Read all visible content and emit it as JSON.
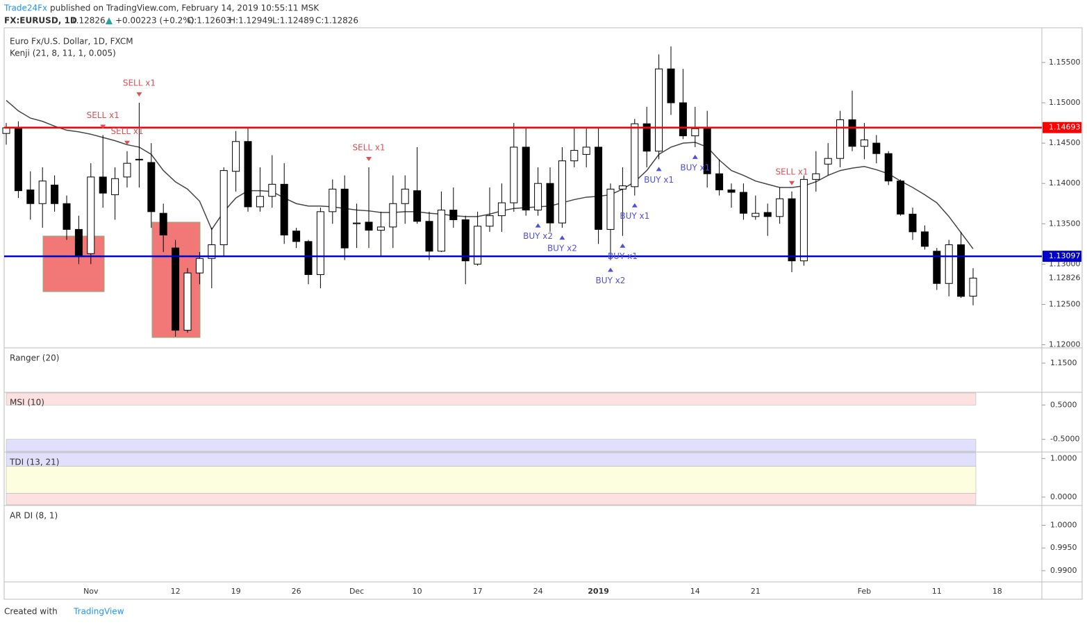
{
  "header": {
    "author": "Trade24Fx",
    "published": "published on TradingView.com, February 14, 2019 10:55:11 MSK",
    "symbol": "FX:EURUSD, 1D",
    "last": "1.12826",
    "change": "+0.00223 (+0.2%)",
    "open": "O:1.12603",
    "high": "H:1.12949",
    "low": "L:1.12489",
    "close": "C:1.12826"
  },
  "footer": {
    "created": "Created with",
    "brand": "TradingView"
  },
  "chart_data": {
    "type": "candlestick",
    "title": "Euro Fx/U.S. Dollar, 1D, FXCM",
    "indicator": "Kenji (21, 8, 11, 1, 0.005)",
    "categories": [
      null,
      null,
      null,
      null,
      null,
      null,
      null,
      "Nov",
      null,
      null,
      null,
      null,
      null,
      null,
      "12",
      null,
      null,
      null,
      null,
      "19",
      null,
      null,
      null,
      null,
      "26",
      null,
      null,
      null,
      null,
      "Dec",
      null,
      null,
      null,
      null,
      "10",
      null,
      null,
      null,
      null,
      "17",
      null,
      null,
      null,
      null,
      "24",
      null,
      null,
      null,
      null,
      "2019",
      null,
      null,
      null,
      null,
      null,
      null,
      null,
      "14",
      null,
      null,
      null,
      null,
      "21",
      null,
      null,
      null,
      null,
      null,
      null,
      null,
      null,
      "Feb",
      null,
      null,
      null,
      null,
      null,
      "11",
      null,
      null,
      null,
      null,
      "18"
    ],
    "open": [
      1.1462,
      1.1468,
      1.1392,
      1.1375,
      1.1398,
      1.1375,
      1.1343,
      1.1313,
      1.1408,
      1.1386,
      1.1408,
      1.143,
      1.1426,
      1.1363,
      1.132,
      1.1218,
      1.1289,
      1.1307,
      1.1324,
      1.1415,
      1.1452,
      1.1371,
      1.1384,
      1.1399,
      1.1341,
      1.1328,
      1.1287,
      1.1365,
      1.1393,
      1.135,
      1.1352,
      1.1342,
      1.1346,
      1.1375,
      1.1391,
      1.1353,
      1.1316,
      1.1367,
      1.1355,
      1.13,
      1.1347,
      1.136,
      1.1376,
      1.1445,
      1.1367,
      1.14,
      1.1351,
      1.1428,
      1.1436,
      1.1445,
      1.1343,
      1.1393,
      1.1396,
      1.1474,
      1.144,
      1.1542,
      1.15,
      1.1459,
      1.1468,
      1.1412,
      1.1392,
      1.1389,
      1.1359,
      1.1364,
      1.1359,
      1.1381,
      1.1304,
      1.1405,
      1.1424,
      1.1431,
      1.1479,
      1.1446,
      1.145,
      1.1437,
      1.1403,
      1.1362,
      1.134,
      1.1316,
      1.1276,
      1.1324,
      1.12603,
      null,
      null
    ],
    "high": [
      1.1475,
      1.1477,
      1.1415,
      1.142,
      1.141,
      1.1385,
      1.136,
      1.1425,
      1.146,
      1.142,
      1.144,
      1.15,
      1.145,
      1.1375,
      1.133,
      1.1295,
      1.1315,
      1.1345,
      1.142,
      1.1465,
      1.147,
      1.142,
      1.1435,
      1.1425,
      1.1345,
      1.133,
      1.137,
      1.1405,
      1.141,
      1.1375,
      1.142,
      1.1365,
      1.141,
      1.141,
      1.1445,
      1.1365,
      1.139,
      1.1395,
      1.136,
      1.1365,
      1.1395,
      1.14,
      1.1475,
      1.147,
      1.142,
      1.142,
      1.1445,
      1.147,
      1.147,
      1.147,
      1.14,
      1.142,
      1.148,
      1.1495,
      1.156,
      1.157,
      1.1542,
      1.1495,
      1.149,
      1.143,
      1.14,
      1.14,
      1.1385,
      1.1375,
      1.1395,
      1.139,
      1.141,
      1.144,
      1.145,
      1.149,
      1.1515,
      1.1475,
      1.146,
      1.144,
      1.1405,
      1.137,
      1.1348,
      1.132,
      1.133,
      1.134,
      1.12949,
      null,
      null
    ],
    "low": [
      1.1448,
      1.1382,
      1.1355,
      1.1345,
      1.1365,
      1.133,
      1.13,
      1.13,
      1.137,
      1.1355,
      1.1395,
      1.1395,
      1.1345,
      1.1315,
      1.121,
      1.1215,
      1.1275,
      1.127,
      1.131,
      1.139,
      1.1365,
      1.1365,
      1.137,
      1.1325,
      1.132,
      1.1275,
      1.127,
      1.135,
      1.1305,
      1.132,
      1.132,
      1.131,
      1.132,
      1.135,
      1.135,
      1.1305,
      1.1315,
      1.1345,
      1.1275,
      1.1298,
      1.134,
      1.134,
      1.1365,
      1.136,
      1.136,
      1.134,
      1.1345,
      1.142,
      1.142,
      1.1325,
      1.1305,
      1.1335,
      1.1385,
      1.142,
      1.143,
      1.1485,
      1.1455,
      1.1445,
      1.1395,
      1.1385,
      1.137,
      1.1355,
      1.1355,
      1.1335,
      1.135,
      1.129,
      1.1298,
      1.139,
      1.141,
      1.142,
      1.144,
      1.143,
      1.1425,
      1.1398,
      1.136,
      1.133,
      1.1318,
      1.1268,
      1.126,
      1.1258,
      1.12489,
      null,
      null
    ],
    "close": [
      1.1469,
      1.1391,
      1.1375,
      1.1403,
      1.1375,
      1.1343,
      1.1311,
      1.1408,
      1.1388,
      1.1406,
      1.1425,
      1.143,
      1.1365,
      1.1336,
      1.1218,
      1.1289,
      1.1307,
      1.1324,
      1.1416,
      1.1452,
      1.1371,
      1.1384,
      1.1399,
      1.1336,
      1.1328,
      1.1287,
      1.1365,
      1.1393,
      1.132,
      1.1351,
      1.1342,
      1.1346,
      1.1375,
      1.1393,
      1.1353,
      1.1316,
      1.1367,
      1.1355,
      1.1304,
      1.1347,
      1.136,
      1.1376,
      1.1445,
      1.1367,
      1.14,
      1.1351,
      1.1428,
      1.1441,
      1.1445,
      1.1343,
      1.1393,
      1.1397,
      1.1474,
      1.144,
      1.1542,
      1.15,
      1.1459,
      1.1468,
      1.1412,
      1.1392,
      1.1389,
      1.1363,
      1.1363,
      1.1359,
      1.1381,
      1.1304,
      1.1405,
      1.1412,
      1.1431,
      1.1479,
      1.1446,
      1.1454,
      1.1437,
      1.1403,
      1.1362,
      1.134,
      1.1322,
      1.1276,
      1.1324,
      1.126,
      1.12826,
      null,
      null
    ],
    "kenji": {
      "color": "#444444",
      "values": [
        1.1503,
        1.149,
        1.1481,
        1.1477,
        1.1471,
        1.1466,
        1.1464,
        1.1461,
        1.1457,
        1.1453,
        1.1448,
        1.1445,
        1.1436,
        1.1416,
        1.1402,
        1.1393,
        1.1378,
        1.1343,
        1.1365,
        1.1382,
        1.1391,
        1.1391,
        1.139,
        1.1382,
        1.1375,
        1.1372,
        1.1372,
        1.1371,
        1.1369,
        1.1367,
        1.1366,
        1.1364,
        1.1364,
        1.1365,
        1.1365,
        1.1363,
        1.1362,
        1.136,
        1.1359,
        1.1359,
        1.1362,
        1.1366,
        1.1369,
        1.137,
        1.1371,
        1.1372,
        1.1376,
        1.138,
        1.1383,
        1.1384,
        1.1386,
        1.1393,
        1.1402,
        1.1416,
        1.1436,
        1.1445,
        1.145,
        1.1451,
        1.1445,
        1.1429,
        1.1416,
        1.141,
        1.1403,
        1.1399,
        1.1395,
        1.1395,
        1.1397,
        1.1402,
        1.141,
        1.1416,
        1.1419,
        1.1421,
        1.1417,
        1.1412,
        1.1403,
        1.1395,
        1.1386,
        1.1376,
        1.1359,
        1.1339,
        1.1319,
        null,
        null
      ]
    },
    "levels": [
      {
        "value": 1.14693,
        "color": "#ff0000"
      },
      {
        "value": 1.13097,
        "color": "#0000cc"
      }
    ],
    "signals": [
      {
        "label": "SELL x1",
        "candle": 11
      },
      {
        "label": "SELL x1",
        "candle": 8
      },
      {
        "label": "SELL x1",
        "candle": 10
      },
      {
        "label": "SELL x1",
        "candle": 30
      },
      {
        "label": "SELL x1",
        "candle": 65
      },
      {
        "label": "BUY x2",
        "candle": 44
      },
      {
        "label": "BUY x2",
        "candle": 46
      },
      {
        "label": "BUY x2",
        "candle": 50
      },
      {
        "label": "BUY x1",
        "candle": 51
      },
      {
        "label": "BUY x1",
        "candle": 52
      },
      {
        "label": "BUY x1",
        "candle": 54
      },
      {
        "label": "BUY x1",
        "candle": 57
      }
    ],
    "ylim": [
      1.1197,
      1.1593
    ],
    "yticks": [
      {
        "value": 1.155,
        "label": "1.15500"
      },
      {
        "value": 1.15,
        "label": "1.15000"
      },
      {
        "value": 1.145,
        "label": "1.14500"
      },
      {
        "value": 1.14,
        "label": "1.14000"
      },
      {
        "value": 1.135,
        "label": "1.13500"
      },
      {
        "value": 1.13,
        "label": "1.13000"
      },
      {
        "value": 1.125,
        "label": "1.12500"
      },
      {
        "value": 1.12,
        "label": "1.12000"
      }
    ],
    "up_color": "#ffffff",
    "down_color": "#000000"
  },
  "panels": [
    {
      "title": "Ranger (20)",
      "ylim": [
        1.1305,
        1.1605
      ],
      "yticks": [
        {
          "value": 1.15,
          "label": "1.1500"
        }
      ]
    },
    {
      "title": "MSI (10)",
      "ylim": [
        -0.85,
        0.85
      ],
      "yticks": [
        {
          "value": 0.5,
          "label": "0.5000"
        },
        {
          "value": -0.5,
          "label": "-0.5000"
        }
      ]
    },
    {
      "title": "TDI (13, 21)",
      "ylim": [
        -0.2,
        1.15
      ],
      "yticks": [
        {
          "value": 1,
          "label": "1.0000"
        },
        {
          "value": 0,
          "label": "0.0000"
        }
      ]
    },
    {
      "title": "AR DI (8, 1)",
      "ylim": [
        0.988,
        1.0042
      ],
      "yticks": [
        {
          "value": 1,
          "label": "1.0000"
        },
        {
          "value": 0.995,
          "label": "0.9950"
        },
        {
          "value": 0.99,
          "label": "0.9900"
        }
      ]
    }
  ]
}
